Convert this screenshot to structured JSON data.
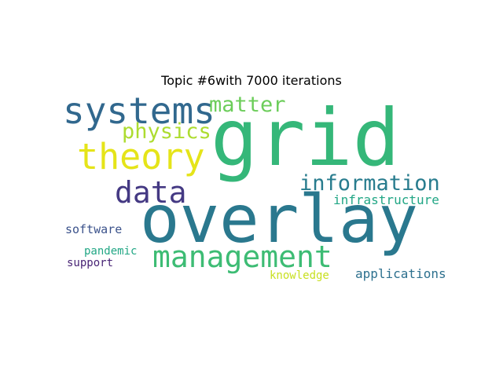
{
  "title": "Topic #6with 7000 iterations",
  "words": [
    {
      "text": "grid",
      "color": "#35b779"
    },
    {
      "text": "overlay",
      "color": "#2a788e"
    },
    {
      "text": "systems",
      "color": "#31688e"
    },
    {
      "text": "theory",
      "color": "#e5e419"
    },
    {
      "text": "management",
      "color": "#3dbc74"
    },
    {
      "text": "data",
      "color": "#443983"
    },
    {
      "text": "matter",
      "color": "#6ccd5a"
    },
    {
      "text": "physics",
      "color": "#addc30"
    },
    {
      "text": "information",
      "color": "#287c8e"
    },
    {
      "text": "infrastructure",
      "color": "#21a685"
    },
    {
      "text": "software",
      "color": "#3b528b"
    },
    {
      "text": "pandemic",
      "color": "#22a785"
    },
    {
      "text": "support",
      "color": "#482475"
    },
    {
      "text": "knowledge",
      "color": "#c8e020"
    },
    {
      "text": "applications",
      "color": "#2d708e"
    }
  ]
}
